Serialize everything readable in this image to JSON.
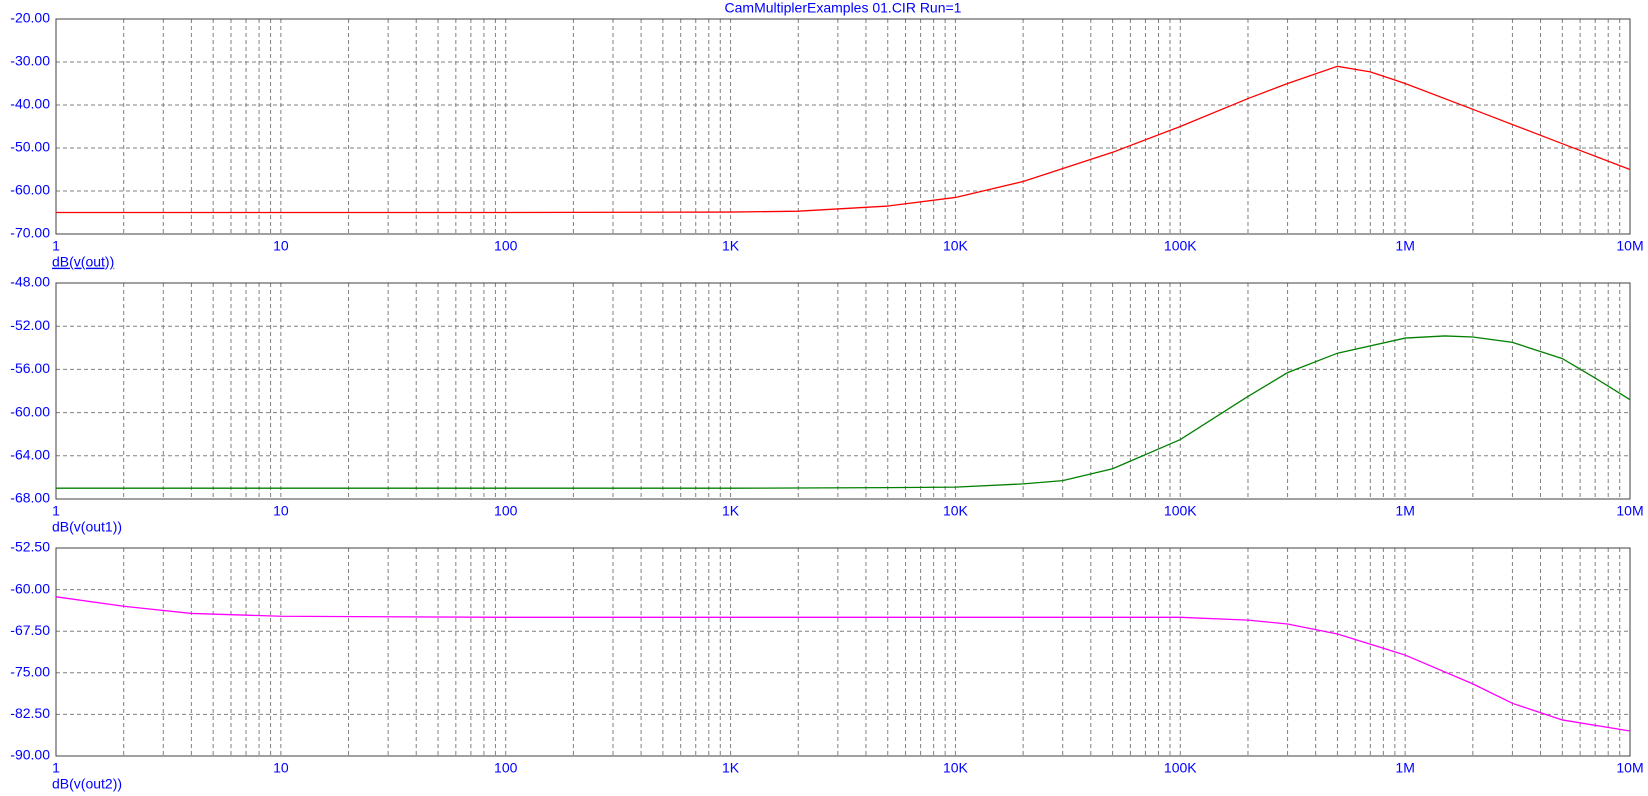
{
  "chart_data": [
    {
      "type": "line",
      "title": "CamMultiplerExamples 01.CIR Run=1",
      "xscale": "log",
      "grid": true,
      "x": [
        1,
        10,
        100,
        1000,
        2000,
        5000,
        10000,
        20000,
        50000,
        100000,
        200000,
        300000,
        500000,
        700000,
        1000000,
        2000000,
        5000000,
        10000000
      ],
      "series": [
        {
          "name": "dB(v(out))",
          "color": "#ff0000",
          "values": [
            -65,
            -65,
            -65,
            -64.9,
            -64.7,
            -63.5,
            -61.5,
            -57.8,
            -51,
            -45,
            -38.5,
            -35,
            -31,
            -32.3,
            -35,
            -41,
            -49,
            -55
          ]
        }
      ],
      "xlim": [
        1,
        10000000
      ],
      "xticks": [
        {
          "value": 1,
          "label": "1"
        },
        {
          "value": 10,
          "label": "10"
        },
        {
          "value": 100,
          "label": "100"
        },
        {
          "value": 1000,
          "label": "1K"
        },
        {
          "value": 10000,
          "label": "10K"
        },
        {
          "value": 100000,
          "label": "100K"
        },
        {
          "value": 1000000,
          "label": "1M"
        },
        {
          "value": 10000000,
          "label": "10M"
        }
      ],
      "ylim": [
        -70,
        -20
      ],
      "yticks": [
        {
          "value": -70,
          "label": "-70.00"
        },
        {
          "value": -60,
          "label": "-60.00"
        },
        {
          "value": -50,
          "label": "-50.00"
        },
        {
          "value": -40,
          "label": "-40.00"
        },
        {
          "value": -30,
          "label": "-30.00"
        },
        {
          "value": -20,
          "label": "-20.00"
        }
      ]
    },
    {
      "type": "line",
      "xscale": "log",
      "grid": true,
      "x": [
        1,
        10,
        100,
        1000,
        5000,
        10000,
        20000,
        30000,
        50000,
        100000,
        200000,
        300000,
        500000,
        1000000,
        1500000,
        2000000,
        3000000,
        5000000,
        7000000,
        10000000
      ],
      "series": [
        {
          "name": "dB(v(out1))",
          "color": "#008000",
          "values": [
            -67,
            -67,
            -67,
            -67,
            -66.95,
            -66.9,
            -66.6,
            -66.3,
            -65.2,
            -62.5,
            -58.5,
            -56.3,
            -54.5,
            -53.1,
            -52.9,
            -53,
            -53.5,
            -55,
            -56.8,
            -58.8
          ]
        }
      ],
      "xlim": [
        1,
        10000000
      ],
      "xticks": [
        {
          "value": 1,
          "label": "1"
        },
        {
          "value": 10,
          "label": "10"
        },
        {
          "value": 100,
          "label": "100"
        },
        {
          "value": 1000,
          "label": "1K"
        },
        {
          "value": 10000,
          "label": "10K"
        },
        {
          "value": 100000,
          "label": "100K"
        },
        {
          "value": 1000000,
          "label": "1M"
        },
        {
          "value": 10000000,
          "label": "10M"
        }
      ],
      "ylim": [
        -68,
        -48
      ],
      "yticks": [
        {
          "value": -68,
          "label": "-68.00"
        },
        {
          "value": -64,
          "label": "-64.00"
        },
        {
          "value": -60,
          "label": "-60.00"
        },
        {
          "value": -56,
          "label": "-56.00"
        },
        {
          "value": -52,
          "label": "-52.00"
        },
        {
          "value": -48,
          "label": "-48.00"
        }
      ]
    },
    {
      "type": "line",
      "xscale": "log",
      "grid": true,
      "x": [
        1,
        2,
        4,
        10,
        100,
        1000,
        10000,
        100000,
        200000,
        300000,
        500000,
        1000000,
        2000000,
        3000000,
        5000000,
        10000000
      ],
      "series": [
        {
          "name": "dB(v(out2))",
          "color": "#ff00ff",
          "values": [
            -61.3,
            -63,
            -64.3,
            -64.8,
            -65,
            -65,
            -65,
            -65,
            -65.5,
            -66.2,
            -68,
            -71.8,
            -77,
            -80.5,
            -83.5,
            -85.5
          ]
        }
      ],
      "xlim": [
        1,
        10000000
      ],
      "xticks": [
        {
          "value": 1,
          "label": "1"
        },
        {
          "value": 10,
          "label": "10"
        },
        {
          "value": 100,
          "label": "100"
        },
        {
          "value": 1000,
          "label": "1K"
        },
        {
          "value": 10000,
          "label": "10K"
        },
        {
          "value": 100000,
          "label": "100K"
        },
        {
          "value": 1000000,
          "label": "1M"
        },
        {
          "value": 10000000,
          "label": "10M"
        }
      ],
      "ylim": [
        -90,
        -52.5
      ],
      "yticks": [
        {
          "value": -90,
          "label": "-90.00"
        },
        {
          "value": -82.5,
          "label": "-82.50"
        },
        {
          "value": -75,
          "label": "-75.00"
        },
        {
          "value": -67.5,
          "label": "-67.50"
        },
        {
          "value": -60,
          "label": "-60.00"
        },
        {
          "value": -52.5,
          "label": "-52.50"
        }
      ]
    }
  ]
}
